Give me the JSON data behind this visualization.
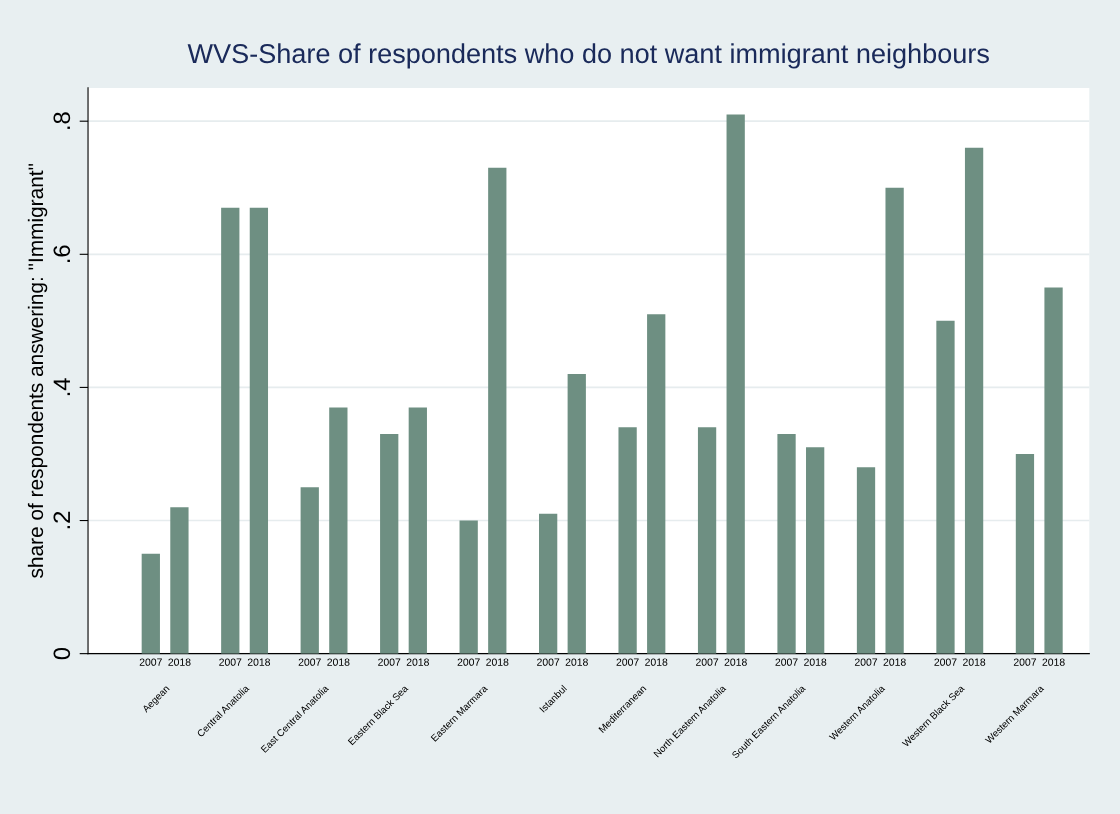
{
  "chart_data": {
    "type": "bar",
    "title": "WVS-Share of respondents who do not want immigrant neighbours",
    "ylabel": "share of respondents answering: \"Immigrant\"",
    "categories": [
      "Aegean",
      "Central Anatolia",
      "East Central Anatolia",
      "Eastern Black Sea",
      "Eastern Marmara",
      "Istanbul",
      "Mediterranean",
      "North Eastern Anatolia",
      "South Eastern Anatolia",
      "Western Anatolia",
      "Western Black Sea",
      "Western Marmara"
    ],
    "series": [
      {
        "name": "2007",
        "color": "#6e8f82",
        "values": [
          0.15,
          0.67,
          0.25,
          0.33,
          0.2,
          0.21,
          0.34,
          0.34,
          0.33,
          0.28,
          0.5,
          0.3
        ]
      },
      {
        "name": "2018",
        "color": "#6e8f82",
        "values": [
          0.22,
          0.67,
          0.37,
          0.37,
          0.73,
          0.42,
          0.51,
          0.81,
          0.31,
          0.7,
          0.76,
          0.55
        ]
      }
    ],
    "ylim": [
      0,
      0.85
    ],
    "yticks": [
      0,
      {
        "value": 0.2,
        "label": ".2"
      },
      {
        "value": 0.4,
        "label": ".4"
      },
      {
        "value": 0.6,
        "label": ".6"
      },
      {
        "value": 0.8,
        "label": ".8"
      }
    ],
    "grid": "y",
    "legend": false
  }
}
